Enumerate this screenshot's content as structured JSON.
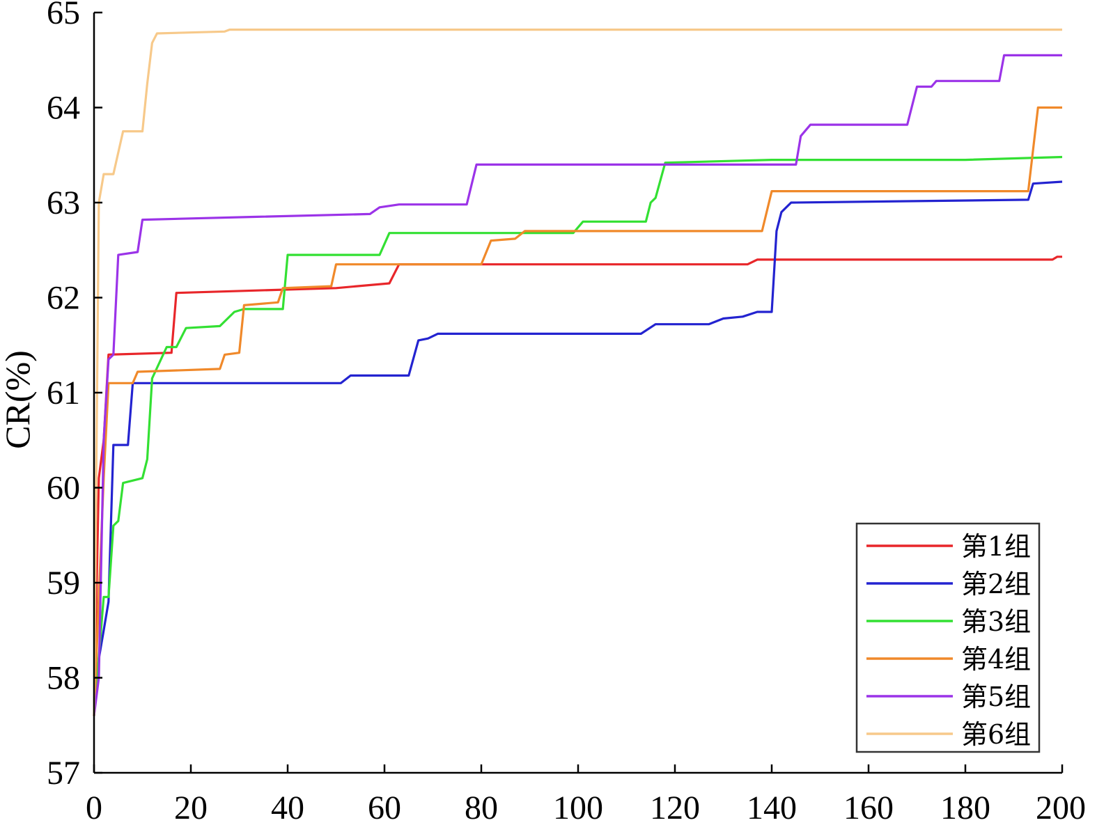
{
  "chart_data": {
    "type": "line",
    "title": "",
    "xlabel": "",
    "ylabel": "CR(%)",
    "xlim": [
      0,
      200
    ],
    "ylim": [
      57,
      65
    ],
    "xticks": [
      0,
      20,
      40,
      60,
      80,
      100,
      120,
      140,
      160,
      180,
      200
    ],
    "yticks": [
      57,
      58,
      59,
      60,
      61,
      62,
      63,
      64,
      65
    ],
    "legend_position": "bottom-right",
    "grid": false,
    "series": [
      {
        "name": "第1组",
        "color": "#e8262a",
        "points": [
          [
            0,
            57.6
          ],
          [
            1,
            60.1
          ],
          [
            2,
            60.5
          ],
          [
            3,
            61.4
          ],
          [
            16,
            61.42
          ],
          [
            17,
            62.05
          ],
          [
            50,
            62.1
          ],
          [
            61,
            62.15
          ],
          [
            63,
            62.35
          ],
          [
            135,
            62.35
          ],
          [
            137,
            62.4
          ],
          [
            198,
            62.4
          ],
          [
            199,
            62.43
          ],
          [
            200,
            62.43
          ]
        ]
      },
      {
        "name": "第2组",
        "color": "#2323d0",
        "points": [
          [
            0,
            57.6
          ],
          [
            1,
            58.2
          ],
          [
            2,
            58.5
          ],
          [
            3,
            58.8
          ],
          [
            4,
            60.45
          ],
          [
            7,
            60.45
          ],
          [
            8,
            61.1
          ],
          [
            51,
            61.1
          ],
          [
            53,
            61.18
          ],
          [
            65,
            61.18
          ],
          [
            67,
            61.55
          ],
          [
            69,
            61.57
          ],
          [
            71,
            61.62
          ],
          [
            113,
            61.62
          ],
          [
            116,
            61.72
          ],
          [
            127,
            61.72
          ],
          [
            130,
            61.78
          ],
          [
            134,
            61.8
          ],
          [
            137,
            61.85
          ],
          [
            140,
            61.85
          ],
          [
            141,
            62.7
          ],
          [
            142,
            62.9
          ],
          [
            144,
            63.0
          ],
          [
            193,
            63.03
          ],
          [
            194,
            63.2
          ],
          [
            200,
            63.22
          ]
        ]
      },
      {
        "name": "第3组",
        "color": "#33e033",
        "points": [
          [
            0,
            57.6
          ],
          [
            2,
            58.85
          ],
          [
            3,
            58.85
          ],
          [
            4,
            59.6
          ],
          [
            5,
            59.65
          ],
          [
            6,
            60.05
          ],
          [
            10,
            60.1
          ],
          [
            11,
            60.3
          ],
          [
            12,
            61.15
          ],
          [
            15,
            61.48
          ],
          [
            17,
            61.48
          ],
          [
            19,
            61.68
          ],
          [
            26,
            61.7
          ],
          [
            29,
            61.85
          ],
          [
            31,
            61.88
          ],
          [
            39,
            61.88
          ],
          [
            40,
            62.45
          ],
          [
            59,
            62.45
          ],
          [
            61,
            62.68
          ],
          [
            99,
            62.68
          ],
          [
            101,
            62.8
          ],
          [
            114,
            62.8
          ],
          [
            115,
            63.0
          ],
          [
            116,
            63.05
          ],
          [
            118,
            63.42
          ],
          [
            140,
            63.45
          ],
          [
            180,
            63.45
          ],
          [
            200,
            63.48
          ]
        ]
      },
      {
        "name": "第4组",
        "color": "#f0892a",
        "points": [
          [
            0,
            57.6
          ],
          [
            2,
            60.1
          ],
          [
            3,
            61.1
          ],
          [
            8,
            61.1
          ],
          [
            9,
            61.22
          ],
          [
            26,
            61.25
          ],
          [
            27,
            61.4
          ],
          [
            30,
            61.42
          ],
          [
            31,
            61.92
          ],
          [
            38,
            61.95
          ],
          [
            39,
            62.1
          ],
          [
            49,
            62.12
          ],
          [
            50,
            62.35
          ],
          [
            80,
            62.35
          ],
          [
            82,
            62.6
          ],
          [
            87,
            62.62
          ],
          [
            89,
            62.7
          ],
          [
            138,
            62.7
          ],
          [
            140,
            63.12
          ],
          [
            193,
            63.12
          ],
          [
            195,
            64.0
          ],
          [
            200,
            64.0
          ]
        ]
      },
      {
        "name": "第5组",
        "color": "#9b33e8",
        "points": [
          [
            0,
            57.6
          ],
          [
            1,
            58.0
          ],
          [
            2,
            60.5
          ],
          [
            3,
            61.35
          ],
          [
            4,
            61.4
          ],
          [
            5,
            62.45
          ],
          [
            9,
            62.48
          ],
          [
            10,
            62.82
          ],
          [
            33,
            62.85
          ],
          [
            57,
            62.88
          ],
          [
            59,
            62.95
          ],
          [
            63,
            62.98
          ],
          [
            77,
            62.98
          ],
          [
            79,
            63.4
          ],
          [
            145,
            63.4
          ],
          [
            146,
            63.7
          ],
          [
            148,
            63.82
          ],
          [
            168,
            63.82
          ],
          [
            170,
            64.22
          ],
          [
            173,
            64.22
          ],
          [
            174,
            64.28
          ],
          [
            187,
            64.28
          ],
          [
            188,
            64.55
          ],
          [
            200,
            64.55
          ]
        ]
      },
      {
        "name": "第6组",
        "color": "#f7c98a",
        "points": [
          [
            0,
            57.6
          ],
          [
            1,
            63.0
          ],
          [
            2,
            63.3
          ],
          [
            4,
            63.3
          ],
          [
            6,
            63.75
          ],
          [
            10,
            63.75
          ],
          [
            11,
            64.25
          ],
          [
            12,
            64.68
          ],
          [
            13,
            64.78
          ],
          [
            27,
            64.8
          ],
          [
            28,
            64.82
          ],
          [
            200,
            64.82
          ]
        ]
      }
    ]
  }
}
